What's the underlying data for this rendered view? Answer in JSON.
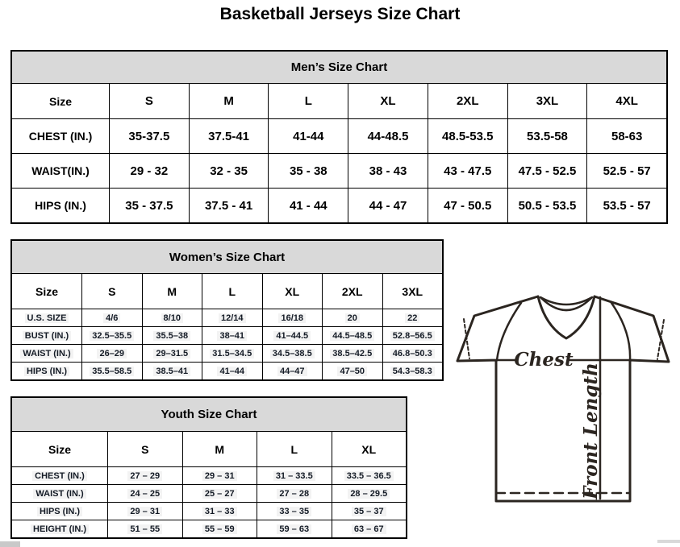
{
  "page_title": "Basketball Jerseys Size Chart",
  "mens": {
    "title": "Men’s Size Chart",
    "columns": [
      "Size",
      "S",
      "M",
      "L",
      "XL",
      "2XL",
      "3XL",
      "4XL"
    ],
    "rows": [
      {
        "label": "CHEST (IN.)",
        "values": [
          "35-37.5",
          "37.5-41",
          "41-44",
          "44-48.5",
          "48.5-53.5",
          "53.5-58",
          "58-63"
        ]
      },
      {
        "label": "WAIST(IN.)",
        "values": [
          "29 - 32",
          "32 - 35",
          "35 - 38",
          "38 - 43",
          "43 - 47.5",
          "47.5 - 52.5",
          "52.5 - 57"
        ]
      },
      {
        "label": "HIPS (IN.)",
        "values": [
          "35 - 37.5",
          "37.5 - 41",
          "41 - 44",
          "44 - 47",
          "47 - 50.5",
          "50.5 - 53.5",
          "53.5 - 57"
        ]
      }
    ]
  },
  "womens": {
    "title": "Women’s Size Chart",
    "columns": [
      "Size",
      "S",
      "M",
      "L",
      "XL",
      "2XL",
      "3XL"
    ],
    "rows": [
      {
        "label": "U.S. SIZE",
        "values": [
          "4/6",
          "8/10",
          "12/14",
          "16/18",
          "20",
          "22"
        ]
      },
      {
        "label": "BUST (IN.)",
        "values": [
          "32.5–35.5",
          "35.5–38",
          "38–41",
          "41–44.5",
          "44.5–48.5",
          "52.8–56.5"
        ]
      },
      {
        "label": "WAIST (IN.)",
        "values": [
          "26–29",
          "29–31.5",
          "31.5–34.5",
          "34.5–38.5",
          "38.5–42.5",
          "46.8–50.3"
        ]
      },
      {
        "label": "HIPS (IN.)",
        "values": [
          "35.5–58.5",
          "38.5–41",
          "41–44",
          "44–47",
          "47–50",
          "54.3–58.3"
        ]
      }
    ]
  },
  "youth": {
    "title": "Youth Size Chart",
    "columns": [
      "Size",
      "S",
      "M",
      "L",
      "XL"
    ],
    "rows": [
      {
        "label": "CHEST (IN.)",
        "values": [
          "27 – 29",
          "29 – 31",
          "31 – 33.5",
          "33.5 – 36.5"
        ]
      },
      {
        "label": "WAIST (IN.)",
        "values": [
          "24 – 25",
          "25 – 27",
          "27 – 28",
          "28 – 29.5"
        ]
      },
      {
        "label": "HIPS (IN.)",
        "values": [
          "29 – 31",
          "31 – 33",
          "33 – 35",
          "35 – 37"
        ]
      },
      {
        "label": "HEIGHT (IN.)",
        "values": [
          "51 – 55",
          "55 – 59",
          "59 – 63",
          "63 – 67"
        ]
      }
    ]
  },
  "diagram": {
    "chest_label": "Chest",
    "front_length_label": "Front Length"
  },
  "colors": {
    "header_fill": "#d9d9d9",
    "table_border": "#000000",
    "jersey_outline": "#2b2520"
  }
}
